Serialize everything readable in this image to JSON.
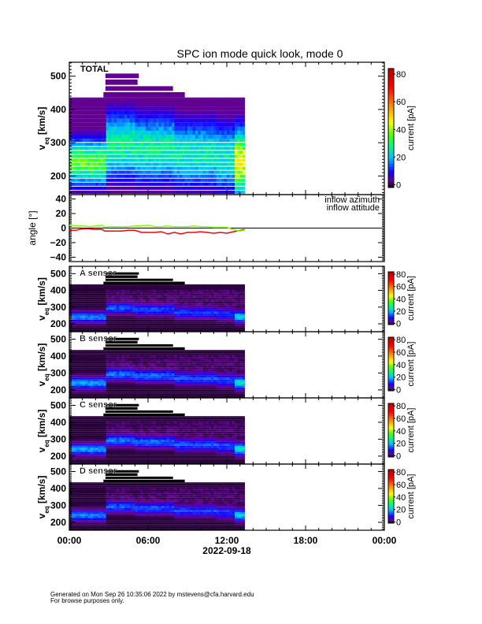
{
  "chart_data": {
    "type": "heatmap",
    "title": "SPC ion mode quick look, mode 0",
    "x": {
      "range_hours": [
        0,
        24
      ],
      "tick_hours": [
        0,
        6,
        12,
        18,
        24
      ],
      "tick_labels": [
        "00:00",
        "06:00",
        "12:00",
        "18:00",
        "00:00"
      ],
      "date_label": "2022-09-18"
    },
    "ylabel": {
      "main": "v",
      "sub": "eq",
      "unit": "[km/s]"
    },
    "colorbar": {
      "label": "current [pA]",
      "range": [
        -2,
        84
      ],
      "ticks": [
        0,
        20,
        40,
        60,
        80
      ]
    },
    "data_end_hour": 13.36,
    "peak_segments": [
      {
        "t": [
          0,
          2.7
        ],
        "v_center": 240,
        "peak_pA": 35
      },
      {
        "t": [
          2.7,
          5
        ],
        "v_center": 290,
        "peak_pA": 28
      },
      {
        "t": [
          5,
          8
        ],
        "v_center": 280,
        "peak_pA": 27
      },
      {
        "t": [
          8,
          11
        ],
        "v_center": 265,
        "peak_pA": 25
      },
      {
        "t": [
          11,
          12.4
        ],
        "v_center": 255,
        "peak_pA": 25
      },
      {
        "t": [
          12.4,
          13.36
        ],
        "v_center": 240,
        "peak_pA": 45
      }
    ],
    "upper_rows": [
      {
        "v": [
          436,
          452
        ],
        "t": [
          2.6,
          8.8
        ]
      },
      {
        "v": [
          456,
          470
        ],
        "t": [
          2.75,
          7.9
        ]
      },
      {
        "v": [
          474,
          490
        ],
        "t": [
          2.75,
          5.2
        ]
      },
      {
        "v": [
          494,
          508
        ],
        "t": [
          2.75,
          5.3
        ]
      }
    ],
    "spectrogram_panels": [
      {
        "id": "total",
        "label": "TOTAL",
        "ylim": [
          144,
          542
        ],
        "yticks": [
          200,
          300,
          400,
          500
        ],
        "scale": 1.0,
        "width_km_s": 80,
        "floor_pA": 3
      },
      {
        "id": "a",
        "label": "A sensor",
        "ylim": [
          153,
          544
        ],
        "yticks": [
          200,
          300,
          400,
          500
        ],
        "scale": 0.45,
        "width_km_s": 30,
        "floor_pA": 0
      },
      {
        "id": "b",
        "label": "B sensor",
        "ylim": [
          153,
          544
        ],
        "yticks": [
          200,
          300,
          400,
          500
        ],
        "scale": 0.5,
        "width_km_s": 32,
        "floor_pA": 0
      },
      {
        "id": "c",
        "label": "C sensor",
        "ylim": [
          153,
          544
        ],
        "yticks": [
          200,
          300,
          400,
          500
        ],
        "scale": 0.5,
        "width_km_s": 32,
        "floor_pA": 0
      },
      {
        "id": "d",
        "label": "D sensor",
        "ylim": [
          153,
          544
        ],
        "yticks": [
          200,
          300,
          400,
          500
        ],
        "scale": 0.45,
        "width_km_s": 30,
        "floor_pA": 0
      }
    ],
    "angle_panel": {
      "ylabel": "angle [°]",
      "ylim": [
        -46,
        46
      ],
      "yticks": [
        -40,
        -20,
        0,
        20,
        40
      ],
      "series": [
        {
          "name": "inflow azimuth",
          "color": "#ff0000",
          "x": [
            0,
            0.5,
            1,
            1.5,
            2,
            2.5,
            2.7,
            3,
            3.5,
            4,
            4.5,
            5,
            5.5,
            6,
            6.5,
            7,
            7.5,
            8,
            8.5,
            9,
            9.5,
            10,
            10.5,
            11,
            11.5,
            12,
            12.5,
            13,
            13.36
          ],
          "y": [
            -3,
            -3,
            -1,
            -1,
            -2,
            -2,
            -4,
            -4,
            -4,
            -4,
            -3,
            -3,
            -6,
            -6,
            -6,
            -5,
            -8,
            -6,
            -8,
            -6,
            -6,
            -5,
            -6,
            -7,
            -6,
            -7,
            -5,
            -3,
            -2
          ]
        },
        {
          "name": "inflow attitude",
          "color": "#80ff00",
          "x": [
            0,
            0.5,
            1,
            1.5,
            2,
            2.5,
            2.7,
            3,
            3.5,
            4,
            4.5,
            5,
            5.5,
            6,
            6.5,
            7,
            7.5,
            8,
            8.5,
            9,
            9.5,
            10,
            10.5,
            11,
            11.5,
            12,
            12.5,
            13,
            13.36
          ],
          "y": [
            4,
            3,
            3,
            2,
            3,
            4,
            1,
            2,
            2,
            2,
            2,
            3,
            3,
            4,
            2,
            2,
            3,
            2,
            2,
            2,
            3,
            2,
            2,
            1,
            1,
            1,
            -2,
            -4,
            -3
          ]
        }
      ]
    }
  },
  "footer": {
    "line1": "Generated on Mon Sep 26 10:35:06 2022 by mstevens@cfa.harvard.edu",
    "line2": "For browse purposes only."
  }
}
